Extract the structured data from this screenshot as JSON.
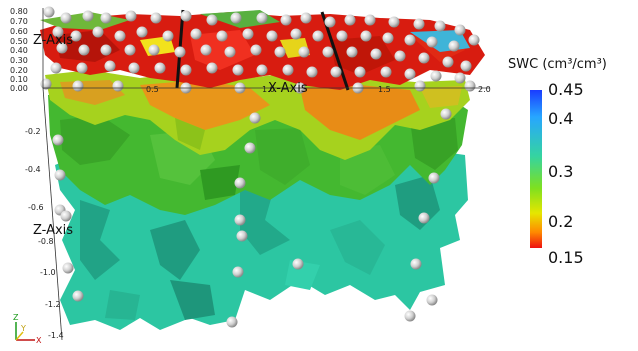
{
  "z_ticks_upper": [
    "0.80",
    "0.70",
    "0.60",
    "0.50",
    "0.40",
    "0.30",
    "0.20",
    "0.10",
    "0.00"
  ],
  "z_ticks_lower": [
    "-0.2",
    "-0.4",
    "-0.6",
    "-0.8",
    "-1.0",
    "-1.2",
    "-1.4"
  ],
  "x_ticks": [
    "0.5",
    "1.0",
    "1.5",
    "2.0"
  ],
  "labels": {
    "z_axis_upper": "Z-Axis",
    "z_axis_lower": "Z-Axis",
    "x_axis": "X-Axis"
  },
  "colorbar": {
    "title": "SWC (cm³/cm³)",
    "labels": [
      "0.45",
      "0.4",
      "0.3",
      "0.2",
      "0.15"
    ],
    "colors": [
      "#1a3cff",
      "#27a6ff",
      "#35d4a0",
      "#7ee020",
      "#e6e600",
      "#ff8a00",
      "#ee1010"
    ]
  },
  "orientation_triad": {
    "z": "Z",
    "y": "Y",
    "x": "X"
  }
}
